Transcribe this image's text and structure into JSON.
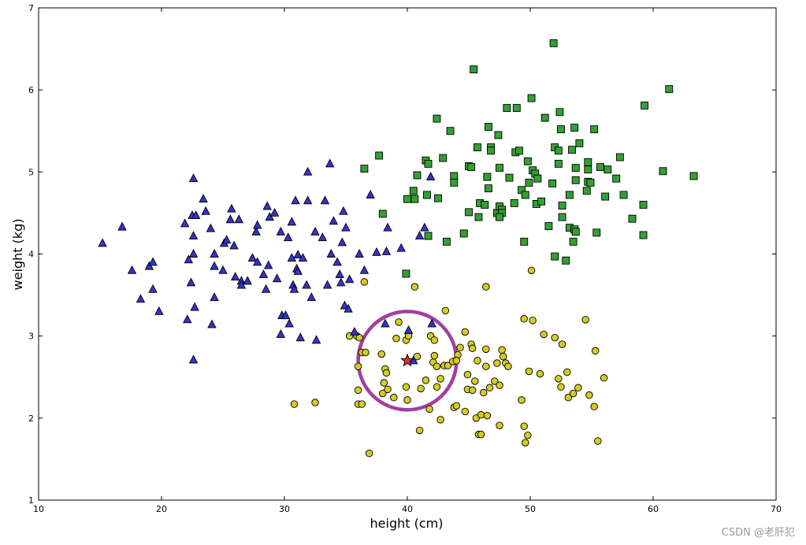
{
  "watermark": "CSDN @老肝犯",
  "chart_data": {
    "type": "scatter",
    "xlabel": "height (cm)",
    "ylabel": "weight (kg)",
    "xlim": [
      10,
      70
    ],
    "ylim": [
      1,
      7
    ],
    "xticks": [
      10,
      20,
      30,
      40,
      50,
      60,
      70
    ],
    "yticks": [
      1,
      2,
      3,
      4,
      5,
      6,
      7
    ],
    "grid": false,
    "colors": {
      "triangle": "#3333cc",
      "square": "#33a033",
      "circle": "#d4cc22",
      "star": "#e03030",
      "ring": "#a040a0"
    },
    "series": [
      {
        "marker": "triangle",
        "points": [
          [
            15.2,
            4.13
          ],
          [
            16.8,
            4.33
          ],
          [
            17.6,
            3.8
          ],
          [
            18.3,
            3.45
          ],
          [
            19.0,
            3.85
          ],
          [
            19.3,
            3.9
          ],
          [
            19.3,
            3.57
          ],
          [
            19.8,
            3.3
          ],
          [
            21.9,
            4.37
          ],
          [
            22.1,
            3.2
          ],
          [
            22.2,
            3.93
          ],
          [
            22.4,
            3.65
          ],
          [
            22.5,
            4.47
          ],
          [
            22.6,
            4.22
          ],
          [
            22.6,
            4.0
          ],
          [
            22.7,
            3.35
          ],
          [
            22.6,
            4.92
          ],
          [
            22.8,
            4.47
          ],
          [
            22.6,
            2.71
          ],
          [
            23.4,
            4.67
          ],
          [
            23.6,
            4.52
          ],
          [
            24.0,
            4.31
          ],
          [
            24.1,
            3.14
          ],
          [
            24.3,
            4.0
          ],
          [
            24.3,
            3.85
          ],
          [
            24.3,
            3.47
          ],
          [
            25.0,
            3.8
          ],
          [
            25.1,
            4.13
          ],
          [
            25.3,
            4.17
          ],
          [
            25.6,
            4.42
          ],
          [
            25.7,
            4.55
          ],
          [
            25.9,
            4.1
          ],
          [
            26.0,
            3.72
          ],
          [
            26.3,
            4.42
          ],
          [
            26.5,
            3.67
          ],
          [
            26.5,
            3.62
          ],
          [
            27.0,
            3.67
          ],
          [
            27.4,
            3.95
          ],
          [
            27.7,
            4.27
          ],
          [
            27.8,
            4.35
          ],
          [
            27.8,
            3.9
          ],
          [
            28.3,
            3.75
          ],
          [
            28.5,
            3.57
          ],
          [
            28.6,
            4.58
          ],
          [
            28.7,
            3.86
          ],
          [
            28.8,
            4.45
          ],
          [
            29.2,
            4.5
          ],
          [
            29.4,
            3.7
          ],
          [
            29.7,
            4.27
          ],
          [
            29.7,
            3.02
          ],
          [
            29.8,
            3.25
          ],
          [
            30.1,
            3.25
          ],
          [
            30.3,
            4.2
          ],
          [
            30.4,
            3.15
          ],
          [
            30.6,
            4.39
          ],
          [
            30.6,
            3.95
          ],
          [
            30.7,
            3.62
          ],
          [
            30.8,
            3.57
          ],
          [
            30.9,
            4.65
          ],
          [
            31.0,
            3.82
          ],
          [
            31.1,
            3.99
          ],
          [
            31.1,
            3.79
          ],
          [
            31.3,
            2.98
          ],
          [
            31.5,
            3.95
          ],
          [
            31.8,
            3.62
          ],
          [
            31.9,
            4.65
          ],
          [
            31.9,
            5.0
          ],
          [
            32.2,
            3.47
          ],
          [
            32.5,
            4.27
          ],
          [
            32.6,
            2.95
          ],
          [
            33.1,
            4.2
          ],
          [
            33.3,
            4.65
          ],
          [
            33.5,
            3.62
          ],
          [
            33.7,
            5.1
          ],
          [
            33.8,
            4.0
          ],
          [
            34.0,
            4.4
          ],
          [
            34.3,
            3.9
          ],
          [
            34.5,
            3.75
          ],
          [
            34.6,
            3.65
          ],
          [
            34.7,
            4.14
          ],
          [
            34.8,
            4.52
          ],
          [
            34.9,
            3.37
          ],
          [
            35.0,
            4.32
          ],
          [
            35.2,
            3.33
          ],
          [
            35.3,
            3.69
          ],
          [
            36.1,
            4.0
          ],
          [
            36.5,
            3.8
          ],
          [
            37.0,
            4.72
          ],
          [
            37.5,
            4.02
          ],
          [
            38.3,
            4.03
          ],
          [
            38.4,
            4.32
          ],
          [
            39.5,
            4.07
          ],
          [
            40.1,
            3.07
          ],
          [
            40.5,
            2.7
          ],
          [
            41.0,
            4.22
          ],
          [
            41.4,
            4.32
          ],
          [
            41.9,
            4.94
          ],
          [
            42.0,
            3.15
          ],
          [
            38.2,
            3.15
          ],
          [
            35.7,
            3.05
          ]
        ]
      },
      {
        "marker": "square",
        "points": [
          [
            36.5,
            5.04
          ],
          [
            37.7,
            5.2
          ],
          [
            38.0,
            4.49
          ],
          [
            39.9,
            3.76
          ],
          [
            40.0,
            4.67
          ],
          [
            40.5,
            4.77
          ],
          [
            40.6,
            4.67
          ],
          [
            40.8,
            4.96
          ],
          [
            41.5,
            5.14
          ],
          [
            41.6,
            4.72
          ],
          [
            41.7,
            4.22
          ],
          [
            41.7,
            5.1
          ],
          [
            42.4,
            5.65
          ],
          [
            42.5,
            4.68
          ],
          [
            42.9,
            5.17
          ],
          [
            43.2,
            4.15
          ],
          [
            43.5,
            5.5
          ],
          [
            43.8,
            4.95
          ],
          [
            43.8,
            4.87
          ],
          [
            44.6,
            4.25
          ],
          [
            45.0,
            5.07
          ],
          [
            45.0,
            4.51
          ],
          [
            45.2,
            5.06
          ],
          [
            45.4,
            6.25
          ],
          [
            45.7,
            5.3
          ],
          [
            45.8,
            4.45
          ],
          [
            45.9,
            4.62
          ],
          [
            46.3,
            4.6
          ],
          [
            46.6,
            4.8
          ],
          [
            46.6,
            5.55
          ],
          [
            46.8,
            5.3
          ],
          [
            46.8,
            5.26
          ],
          [
            47.4,
            5.45
          ],
          [
            47.3,
            4.5
          ],
          [
            47.5,
            5.05
          ],
          [
            47.5,
            4.58
          ],
          [
            47.7,
            4.54
          ],
          [
            47.7,
            4.5
          ],
          [
            47.5,
            4.45
          ],
          [
            48.1,
            5.78
          ],
          [
            48.3,
            4.93
          ],
          [
            48.7,
            4.62
          ],
          [
            48.8,
            5.24
          ],
          [
            48.9,
            5.78
          ],
          [
            49.1,
            5.26
          ],
          [
            49.3,
            4.78
          ],
          [
            49.6,
            4.72
          ],
          [
            49.5,
            4.15
          ],
          [
            49.8,
            5.13
          ],
          [
            50.1,
            5.9
          ],
          [
            50.2,
            5.02
          ],
          [
            50.4,
            4.98
          ],
          [
            50.5,
            4.61
          ],
          [
            50.6,
            4.92
          ],
          [
            50.9,
            4.64
          ],
          [
            51.2,
            5.66
          ],
          [
            51.5,
            4.34
          ],
          [
            51.8,
            4.86
          ],
          [
            52.0,
            3.97
          ],
          [
            52.0,
            5.3
          ],
          [
            52.3,
            5.1
          ],
          [
            52.3,
            5.26
          ],
          [
            52.4,
            5.73
          ],
          [
            52.5,
            5.52
          ],
          [
            52.6,
            4.59
          ],
          [
            52.6,
            4.45
          ],
          [
            52.9,
            3.92
          ],
          [
            53.2,
            4.32
          ],
          [
            53.2,
            4.72
          ],
          [
            53.4,
            5.27
          ],
          [
            53.5,
            4.15
          ],
          [
            53.6,
            5.54
          ],
          [
            53.6,
            4.3
          ],
          [
            53.7,
            4.9
          ],
          [
            53.7,
            5.05
          ],
          [
            53.7,
            4.27
          ],
          [
            54.0,
            5.35
          ],
          [
            54.6,
            4.77
          ],
          [
            54.7,
            5.03
          ],
          [
            54.7,
            4.88
          ],
          [
            54.7,
            5.12
          ],
          [
            54.9,
            4.87
          ],
          [
            55.2,
            5.52
          ],
          [
            55.4,
            4.26
          ],
          [
            55.7,
            5.06
          ],
          [
            56.1,
            4.7
          ],
          [
            56.3,
            5.03
          ],
          [
            57.0,
            4.92
          ],
          [
            57.3,
            5.18
          ],
          [
            57.6,
            4.72
          ],
          [
            58.3,
            4.43
          ],
          [
            59.2,
            4.6
          ],
          [
            59.2,
            4.23
          ],
          [
            59.3,
            5.81
          ],
          [
            60.8,
            5.01
          ],
          [
            61.3,
            6.01
          ],
          [
            63.3,
            4.95
          ],
          [
            51.9,
            6.57
          ],
          [
            46.5,
            4.94
          ],
          [
            49.9,
            4.87
          ]
        ]
      },
      {
        "marker": "circle",
        "points": [
          [
            30.8,
            2.17
          ],
          [
            32.5,
            2.19
          ],
          [
            35.3,
            3.0
          ],
          [
            35.9,
            3.0
          ],
          [
            36.1,
            2.98
          ],
          [
            36.0,
            2.63
          ],
          [
            36.0,
            2.34
          ],
          [
            36.0,
            2.17
          ],
          [
            36.3,
            2.17
          ],
          [
            36.3,
            2.8
          ],
          [
            36.5,
            3.66
          ],
          [
            36.9,
            1.57
          ],
          [
            37.9,
            2.78
          ],
          [
            38.0,
            2.3
          ],
          [
            38.1,
            2.43
          ],
          [
            38.2,
            2.6
          ],
          [
            38.3,
            2.55
          ],
          [
            38.4,
            2.35
          ],
          [
            38.9,
            2.25
          ],
          [
            39.1,
            2.97
          ],
          [
            39.3,
            3.17
          ],
          [
            39.9,
            2.95
          ],
          [
            39.9,
            2.38
          ],
          [
            40.0,
            2.22
          ],
          [
            40.1,
            3.0
          ],
          [
            40.6,
            3.6
          ],
          [
            41.0,
            1.85
          ],
          [
            41.1,
            2.36
          ],
          [
            41.5,
            2.46
          ],
          [
            41.8,
            2.11
          ],
          [
            41.9,
            3.0
          ],
          [
            42.1,
            2.68
          ],
          [
            42.2,
            2.76
          ],
          [
            42.4,
            2.63
          ],
          [
            42.4,
            2.38
          ],
          [
            42.7,
            2.48
          ],
          [
            42.7,
            1.98
          ],
          [
            43.0,
            2.64
          ],
          [
            43.1,
            3.31
          ],
          [
            43.3,
            2.64
          ],
          [
            43.7,
            2.69
          ],
          [
            43.8,
            2.13
          ],
          [
            44.0,
            2.15
          ],
          [
            44.1,
            2.77
          ],
          [
            44.3,
            2.86
          ],
          [
            44.7,
            3.05
          ],
          [
            44.7,
            2.08
          ],
          [
            44.9,
            2.35
          ],
          [
            44.9,
            2.53
          ],
          [
            45.2,
            2.9
          ],
          [
            45.3,
            2.85
          ],
          [
            45.3,
            2.34
          ],
          [
            45.5,
            2.45
          ],
          [
            45.6,
            2.0
          ],
          [
            45.7,
            2.7
          ],
          [
            45.8,
            1.8
          ],
          [
            46.0,
            2.04
          ],
          [
            46.0,
            1.8
          ],
          [
            46.2,
            2.31
          ],
          [
            46.4,
            2.63
          ],
          [
            46.4,
            2.84
          ],
          [
            46.4,
            3.6
          ],
          [
            46.5,
            2.03
          ],
          [
            46.7,
            2.37
          ],
          [
            47.1,
            2.45
          ],
          [
            47.3,
            2.67
          ],
          [
            47.5,
            1.91
          ],
          [
            47.5,
            2.4
          ],
          [
            47.7,
            2.83
          ],
          [
            47.8,
            2.75
          ],
          [
            48.0,
            2.67
          ],
          [
            48.2,
            2.63
          ],
          [
            49.3,
            2.22
          ],
          [
            49.5,
            3.21
          ],
          [
            49.5,
            1.9
          ],
          [
            49.6,
            1.7
          ],
          [
            49.8,
            1.79
          ],
          [
            49.9,
            2.57
          ],
          [
            50.1,
            3.8
          ],
          [
            50.2,
            3.19
          ],
          [
            50.8,
            2.54
          ],
          [
            51.1,
            3.02
          ],
          [
            52.0,
            2.98
          ],
          [
            52.3,
            2.48
          ],
          [
            52.5,
            2.38
          ],
          [
            52.6,
            2.9
          ],
          [
            53.0,
            2.56
          ],
          [
            53.1,
            2.25
          ],
          [
            53.5,
            2.3
          ],
          [
            53.9,
            2.37
          ],
          [
            54.5,
            3.2
          ],
          [
            54.8,
            2.28
          ],
          [
            55.2,
            2.14
          ],
          [
            55.3,
            2.82
          ],
          [
            55.5,
            1.72
          ],
          [
            56.0,
            2.49
          ],
          [
            44.0,
            2.7
          ],
          [
            42.2,
            2.95
          ],
          [
            36.6,
            2.8
          ],
          [
            40.8,
            2.75
          ]
        ]
      },
      {
        "marker": "star",
        "points": [
          [
            40.0,
            2.7
          ]
        ]
      }
    ],
    "annotations": [
      {
        "type": "circle",
        "center": [
          40.0,
          2.7
        ],
        "radius_x_units": 4.0
      }
    ]
  }
}
